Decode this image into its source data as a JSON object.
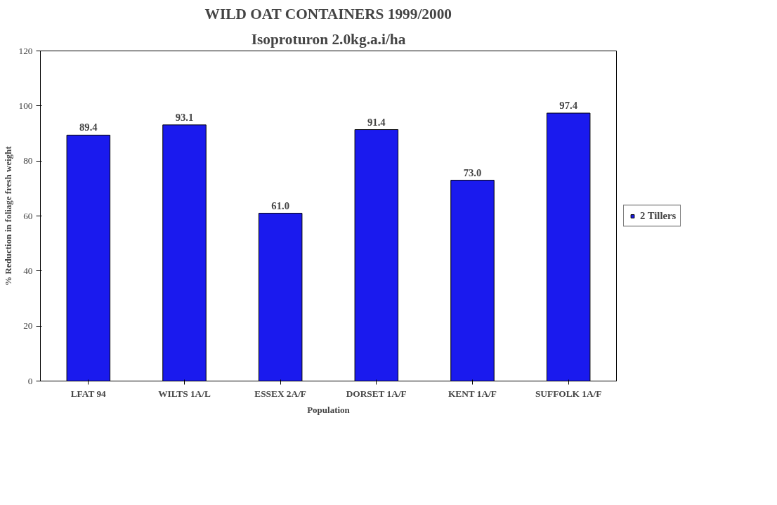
{
  "chart_data": {
    "type": "bar",
    "title": "WILD OAT CONTAINERS 1999/2000",
    "subtitle": "Isoproturon 2.0kg.a.i/ha",
    "xlabel": "Population",
    "ylabel": "% Reduction in foliage fresh weight",
    "categories": [
      "LFAT 94",
      "WILTS 1A/L",
      "ESSEX 2A/F",
      "DORSET 1A/F",
      "KENT 1A/F",
      "SUFFOLK 1A/F"
    ],
    "series": [
      {
        "name": "2 Tillers",
        "color": "#1a1aee",
        "values": [
          89.4,
          93.1,
          61.0,
          91.4,
          73.0,
          97.4
        ],
        "value_labels": [
          "89.4",
          "93.1",
          "61.0",
          "91.4",
          "73.0",
          "97.4"
        ]
      }
    ],
    "ylim": [
      0,
      120
    ],
    "yticks": [
      0,
      20,
      40,
      60,
      80,
      100,
      120
    ],
    "grid": false,
    "legend": "right"
  }
}
